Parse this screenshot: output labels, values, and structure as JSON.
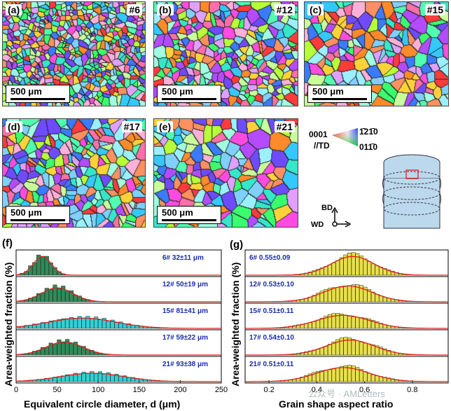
{
  "maps": [
    {
      "label": "(a)",
      "sample": "#6",
      "scale": "500 μm"
    },
    {
      "label": "(b)",
      "sample": "#12",
      "scale": "500 μm"
    },
    {
      "label": "(c)",
      "sample": "#15",
      "scale": "500 μm"
    },
    {
      "label": "(d)",
      "sample": "#17",
      "scale": "500 μm"
    },
    {
      "label": "(e)",
      "sample": "#21",
      "scale": "500 μm"
    }
  ],
  "ipf_legend": {
    "corner_0001": "0001",
    "corner_12bar10": "1̄21̄0",
    "corner_01bar10": "011̄0",
    "direction": "//TD"
  },
  "axes_schematic": {
    "bd": "BD",
    "wd": "WD"
  },
  "panel_f": {
    "label": "(f)",
    "ylabel": "Area-weighted fraction (%)",
    "xlabel": "Equivalent circle diameter, d (μm)",
    "xticks": [
      "0",
      "50",
      "100",
      "150",
      "200",
      "250"
    ]
  },
  "panel_g": {
    "label": "(g)",
    "ylabel": "Area-weighted fraction (%)",
    "xlabel": "Grain shape aspect ratio",
    "xticks": [
      "0.2",
      "0.4",
      "0.6",
      "0.8"
    ]
  },
  "watermark": "公众号 · AMLetters",
  "chart_data": [
    {
      "type": "bar",
      "title": "",
      "xlabel": "Equivalent circle diameter, d (μm)",
      "ylabel": "Area-weighted fraction (%)",
      "xlim": [
        0,
        250
      ],
      "series": [
        {
          "name": "6#",
          "annotation": "6#   32±11 μm",
          "mean": 32,
          "sd": 11,
          "color": "#2e8b57"
        },
        {
          "name": "12#",
          "annotation": "12#   50±19 μm",
          "mean": 50,
          "sd": 19,
          "color": "#2e8b57"
        },
        {
          "name": "15#",
          "annotation": "15#   81±41 μm",
          "mean": 81,
          "sd": 41,
          "color": "#2fd2d6"
        },
        {
          "name": "17#",
          "annotation": "17#   59±22 μm",
          "mean": 59,
          "sd": 22,
          "color": "#2e8b57"
        },
        {
          "name": "21#",
          "annotation": "21#   93±38 μm",
          "mean": 93,
          "sd": 38,
          "color": "#2fd2d6"
        }
      ]
    },
    {
      "type": "bar",
      "title": "",
      "xlabel": "Grain shape aspect ratio",
      "ylabel": "Area-weighted fraction (%)",
      "xlim": [
        0.1,
        0.95
      ],
      "series": [
        {
          "name": "6#",
          "annotation": "6#   0.55±0.09",
          "mean": 0.55,
          "sd": 0.09,
          "color": "#e8e04a"
        },
        {
          "name": "12#",
          "annotation": "12#   0.53±0.10",
          "mean": 0.53,
          "sd": 0.1,
          "color": "#e8e04a"
        },
        {
          "name": "15#",
          "annotation": "15#   0.51±0.11",
          "mean": 0.51,
          "sd": 0.11,
          "color": "#e8e04a"
        },
        {
          "name": "17#",
          "annotation": "17#   0.54±0.10",
          "mean": 0.54,
          "sd": 0.1,
          "color": "#e8e04a"
        },
        {
          "name": "21#",
          "annotation": "21#   0.51±0.11",
          "mean": 0.51,
          "sd": 0.11,
          "color": "#e8e04a"
        }
      ]
    }
  ]
}
